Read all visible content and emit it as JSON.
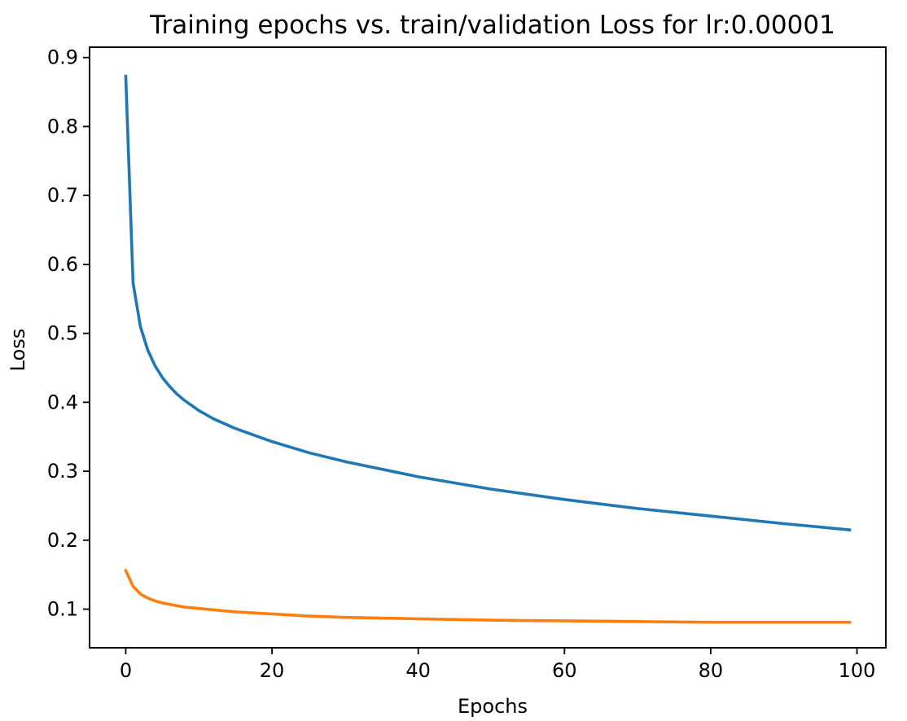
{
  "chart_data": {
    "type": "line",
    "title": "Training epochs vs. train/validation Loss for lr:0.00001",
    "xlabel": "Epochs",
    "ylabel": "Loss",
    "xlim": [
      -4.95,
      103.95
    ],
    "ylim": [
      0.044,
      0.915
    ],
    "xticks": [
      0,
      20,
      40,
      60,
      80,
      100
    ],
    "yticks": [
      0.1,
      0.2,
      0.3,
      0.4,
      0.5,
      0.6,
      0.7,
      0.8,
      0.9
    ],
    "x_tick_labels": [
      "0",
      "20",
      "40",
      "60",
      "80",
      "100"
    ],
    "y_tick_labels": [
      "0.1",
      "0.2",
      "0.3",
      "0.4",
      "0.5",
      "0.6",
      "0.7",
      "0.8",
      "0.9"
    ],
    "grid": false,
    "legend": "none",
    "series": [
      {
        "color": "#1f77b4",
        "x": [
          0,
          1,
          2,
          3,
          4,
          5,
          6,
          7,
          8,
          10,
          12,
          15,
          20,
          25,
          30,
          40,
          50,
          60,
          70,
          80,
          90,
          99
        ],
        "y": [
          0.873,
          0.573,
          0.51,
          0.476,
          0.453,
          0.436,
          0.423,
          0.412,
          0.403,
          0.388,
          0.376,
          0.362,
          0.343,
          0.327,
          0.314,
          0.292,
          0.274,
          0.259,
          0.246,
          0.235,
          0.224,
          0.215
        ]
      },
      {
        "color": "#ff7f0e",
        "x": [
          0,
          1,
          2,
          3,
          4,
          5,
          6,
          7,
          8,
          10,
          12,
          15,
          20,
          25,
          30,
          40,
          50,
          60,
          70,
          80,
          90,
          99
        ],
        "y": [
          0.156,
          0.133,
          0.122,
          0.116,
          0.112,
          0.109,
          0.107,
          0.105,
          0.103,
          0.101,
          0.099,
          0.096,
          0.093,
          0.09,
          0.088,
          0.086,
          0.084,
          0.083,
          0.082,
          0.081,
          0.081,
          0.081
        ]
      }
    ]
  }
}
